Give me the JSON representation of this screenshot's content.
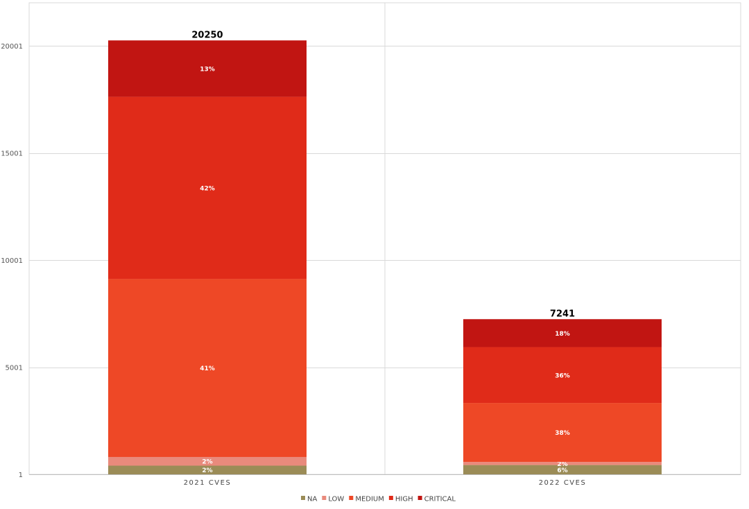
{
  "chart_data": {
    "type": "bar",
    "stacked": true,
    "title": "",
    "xlabel": "",
    "ylabel": "",
    "ylim": [
      1,
      22000
    ],
    "yticks": [
      1,
      5001,
      10001,
      15001,
      20001
    ],
    "categories": [
      "2021 CVES",
      "2022 CVES"
    ],
    "totals": [
      20250,
      7241
    ],
    "series": [
      {
        "name": "NA",
        "color": "#9b8c57",
        "values": [
          405,
          434
        ],
        "labels": [
          "2%",
          "6%"
        ]
      },
      {
        "name": "LOW",
        "color": "#e98a7c",
        "values": [
          405,
          145
        ],
        "labels": [
          "2%",
          "2%"
        ]
      },
      {
        "name": "MEDIUM",
        "color": "#ee4826",
        "values": [
          8303,
          2752
        ],
        "labels": [
          "41%",
          "38%"
        ]
      },
      {
        "name": "HIGH",
        "color": "#e02b19",
        "values": [
          8505,
          2607
        ],
        "labels": [
          "42%",
          "36%"
        ]
      },
      {
        "name": "CRITICAL",
        "color": "#c11512",
        "values": [
          2632,
          1303
        ],
        "labels": [
          "13%",
          "18%"
        ]
      }
    ],
    "legend_position": "bottom",
    "grid": true
  }
}
